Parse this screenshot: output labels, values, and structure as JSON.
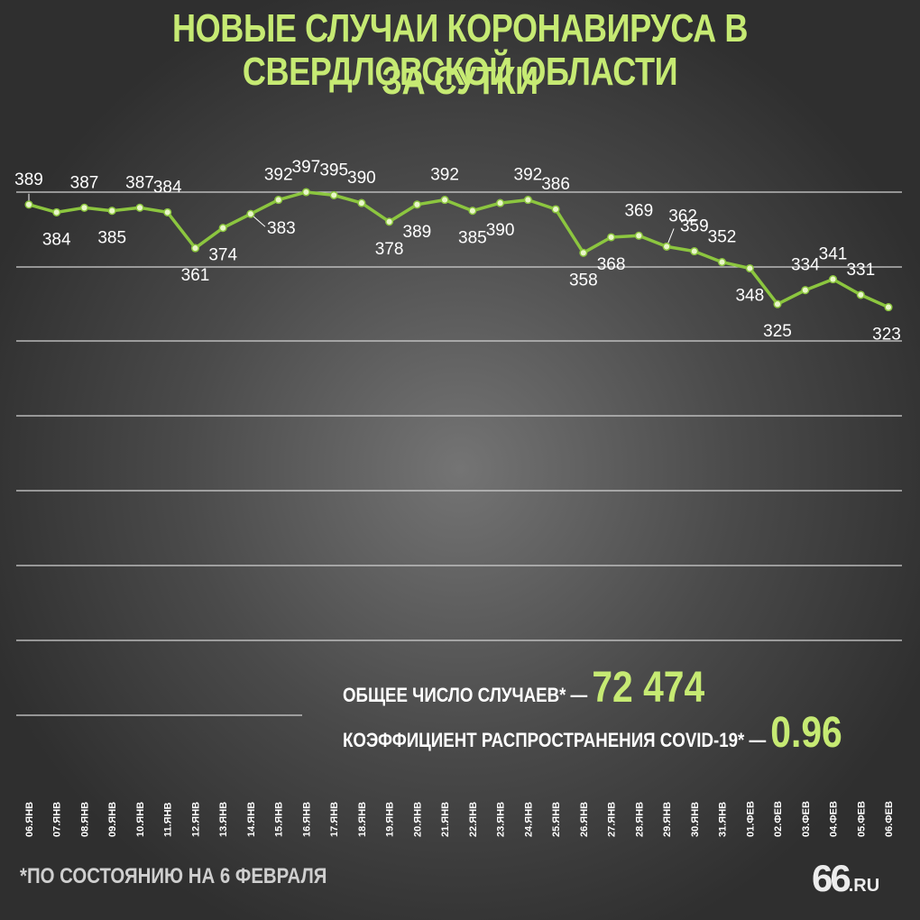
{
  "title_line1": "НОВЫЕ СЛУЧАИ КОРОНАВИРУСА В СВЕРДЛОВСКОЙ ОБЛАСТИ",
  "title_line2": "ЗА СУТКИ",
  "stats": {
    "total_label": "ОБЩЕЕ ЧИСЛО СЛУЧАЕВ* —",
    "total_value": "72 474",
    "coef_label": "КОЭФФИЦИЕНТ РАСПРОСТРАНЕНИЯ COVID-19* —",
    "coef_value": "0.96"
  },
  "footnote": "*ПО СОСТОЯНИЮ НА 6 ФЕВРАЛЯ",
  "logo": {
    "number": "66",
    "suffix": ".RU"
  },
  "colors": {
    "accent": "#c6ea73",
    "line": "#8cc63f",
    "point": "#e9f7c8",
    "grid": "#d2d2d2"
  },
  "chart_data": {
    "type": "line",
    "categories": [
      "06.ЯНВ",
      "07.ЯНВ",
      "08.ЯНВ",
      "09.ЯНВ",
      "10.ЯНВ",
      "11.ЯНВ",
      "12.ЯНВ",
      "13.ЯНВ",
      "14.ЯНВ",
      "15.ЯНВ",
      "16.ЯНВ",
      "17.ЯНВ",
      "18.ЯНВ",
      "19.ЯНВ",
      "20.ЯНВ",
      "21.ЯНВ",
      "22.ЯНВ",
      "23.ЯНВ",
      "24.ЯНВ",
      "25.ЯНВ",
      "26.ЯНВ",
      "27.ЯНВ",
      "28.ЯНВ",
      "29.ЯНВ",
      "30.ЯНВ",
      "31.ЯНВ",
      "01.ФЕВ",
      "02.ФЕВ",
      "03.ФЕВ",
      "04.ФЕВ",
      "05.ФЕВ",
      "06.ФЕВ"
    ],
    "values": [
      389,
      384,
      387,
      385,
      387,
      384,
      361,
      374,
      383,
      392,
      397,
      395,
      390,
      378,
      389,
      392,
      385,
      390,
      392,
      386,
      358,
      368,
      369,
      362,
      359,
      352,
      348,
      325,
      334,
      341,
      331,
      323
    ],
    "gridlines": 7,
    "grid": true,
    "ylim": [
      0,
      400
    ]
  }
}
